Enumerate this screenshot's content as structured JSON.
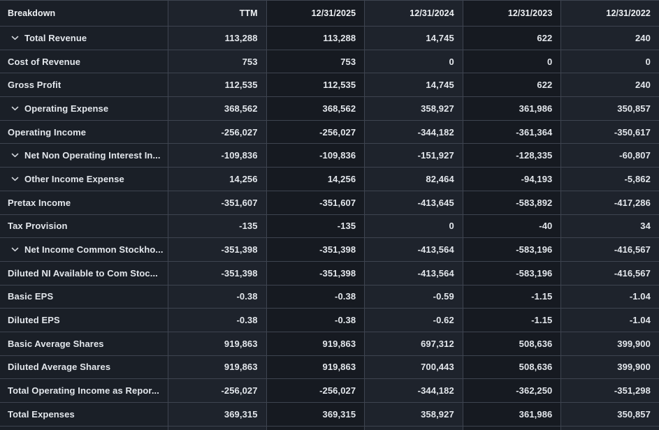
{
  "table": {
    "columns": [
      "Breakdown",
      "TTM",
      "12/31/2025",
      "12/31/2024",
      "12/31/2023",
      "12/31/2022"
    ],
    "rows": [
      {
        "label": "Total Revenue",
        "expandable": true,
        "values": [
          "113,288",
          "113,288",
          "14,745",
          "622",
          "240"
        ]
      },
      {
        "label": "Cost of Revenue",
        "expandable": false,
        "values": [
          "753",
          "753",
          "0",
          "0",
          "0"
        ]
      },
      {
        "label": "Gross Profit",
        "expandable": false,
        "values": [
          "112,535",
          "112,535",
          "14,745",
          "622",
          "240"
        ]
      },
      {
        "label": "Operating Expense",
        "expandable": true,
        "values": [
          "368,562",
          "368,562",
          "358,927",
          "361,986",
          "350,857"
        ]
      },
      {
        "label": "Operating Income",
        "expandable": false,
        "values": [
          "-256,027",
          "-256,027",
          "-344,182",
          "-361,364",
          "-350,617"
        ]
      },
      {
        "label": "Net Non Operating Interest In...",
        "expandable": true,
        "values": [
          "-109,836",
          "-109,836",
          "-151,927",
          "-128,335",
          "-60,807"
        ]
      },
      {
        "label": "Other Income Expense",
        "expandable": true,
        "values": [
          "14,256",
          "14,256",
          "82,464",
          "-94,193",
          "-5,862"
        ]
      },
      {
        "label": "Pretax Income",
        "expandable": false,
        "values": [
          "-351,607",
          "-351,607",
          "-413,645",
          "-583,892",
          "-417,286"
        ]
      },
      {
        "label": "Tax Provision",
        "expandable": false,
        "values": [
          "-135",
          "-135",
          "0",
          "-40",
          "34"
        ]
      },
      {
        "label": "Net Income Common Stockho...",
        "expandable": true,
        "values": [
          "-351,398",
          "-351,398",
          "-413,564",
          "-583,196",
          "-416,567"
        ]
      },
      {
        "label": "Diluted NI Available to Com Stoc...",
        "expandable": false,
        "values": [
          "-351,398",
          "-351,398",
          "-413,564",
          "-583,196",
          "-416,567"
        ]
      },
      {
        "label": "Basic EPS",
        "expandable": false,
        "values": [
          "-0.38",
          "-0.38",
          "-0.59",
          "-1.15",
          "-1.04"
        ]
      },
      {
        "label": "Diluted EPS",
        "expandable": false,
        "values": [
          "-0.38",
          "-0.38",
          "-0.62",
          "-1.15",
          "-1.04"
        ]
      },
      {
        "label": "Basic Average Shares",
        "expandable": false,
        "values": [
          "919,863",
          "919,863",
          "697,312",
          "508,636",
          "399,900"
        ]
      },
      {
        "label": "Diluted Average Shares",
        "expandable": false,
        "values": [
          "919,863",
          "919,863",
          "700,443",
          "508,636",
          "399,900"
        ]
      },
      {
        "label": "Total Operating Income as Repor...",
        "expandable": false,
        "values": [
          "-256,027",
          "-256,027",
          "-344,182",
          "-362,250",
          "-351,298"
        ]
      },
      {
        "label": "Total Expenses",
        "expandable": false,
        "values": [
          "369,315",
          "369,315",
          "358,927",
          "361,986",
          "350,857"
        ]
      }
    ]
  },
  "colors": {
    "stripe_light": "#1e232c",
    "stripe_dark": "#161a21",
    "label_column": "#1a1f27",
    "border": "#3e4450",
    "text": "#e3e7ec"
  }
}
